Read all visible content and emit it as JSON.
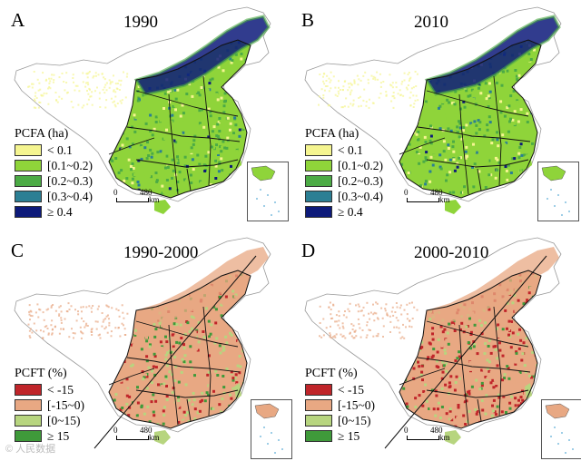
{
  "colors": {
    "pcfa": [
      "#f5f590",
      "#8fd43a",
      "#4cab45",
      "#2b7f94",
      "#0d1a7a"
    ],
    "pcft": [
      "#c0252a",
      "#e8a883",
      "#b7d57f",
      "#3f9a3a"
    ],
    "boundary": "#111111",
    "sea": "#7fbfe0"
  },
  "panels": [
    {
      "letter": "A",
      "period": "1990",
      "legend": {
        "title": "PCFA (ha)",
        "items": [
          {
            "label": "<  0.1"
          },
          {
            "label": "[0.1~0.2)"
          },
          {
            "label": "[0.2~0.3)"
          },
          {
            "label": "[0.3~0.4)"
          },
          {
            "label": "≥ 0.4"
          }
        ]
      },
      "scale": {
        "zero": "0",
        "distance": "480",
        "unit": "km"
      }
    },
    {
      "letter": "B",
      "period": "2010",
      "legend": {
        "title": "PCFA (ha)",
        "items": [
          {
            "label": "<  0.1"
          },
          {
            "label": "[0.1~0.2)"
          },
          {
            "label": "[0.2~0.3)"
          },
          {
            "label": "[0.3~0.4)"
          },
          {
            "label": "≥ 0.4"
          }
        ]
      },
      "scale": {
        "zero": "0",
        "distance": "480",
        "unit": "km"
      }
    },
    {
      "letter": "C",
      "period": "1990-2000",
      "legend": {
        "title": "PCFT (%)",
        "items": [
          {
            "label": "< -15"
          },
          {
            "label": "[-15~0)"
          },
          {
            "label": "[0~15)"
          },
          {
            "label": "≥ 15"
          }
        ]
      },
      "scale": {
        "zero": "0",
        "distance": "480",
        "unit": "km"
      }
    },
    {
      "letter": "D",
      "period": "2000-2010",
      "legend": {
        "title": "PCFT (%)",
        "items": [
          {
            "label": "< -15"
          },
          {
            "label": "[-15~0)"
          },
          {
            "label": "[0~15)"
          },
          {
            "label": "≥ 15"
          }
        ]
      },
      "scale": {
        "zero": "0",
        "distance": "480",
        "unit": "km"
      }
    }
  ],
  "watermark": "© 人民数据"
}
